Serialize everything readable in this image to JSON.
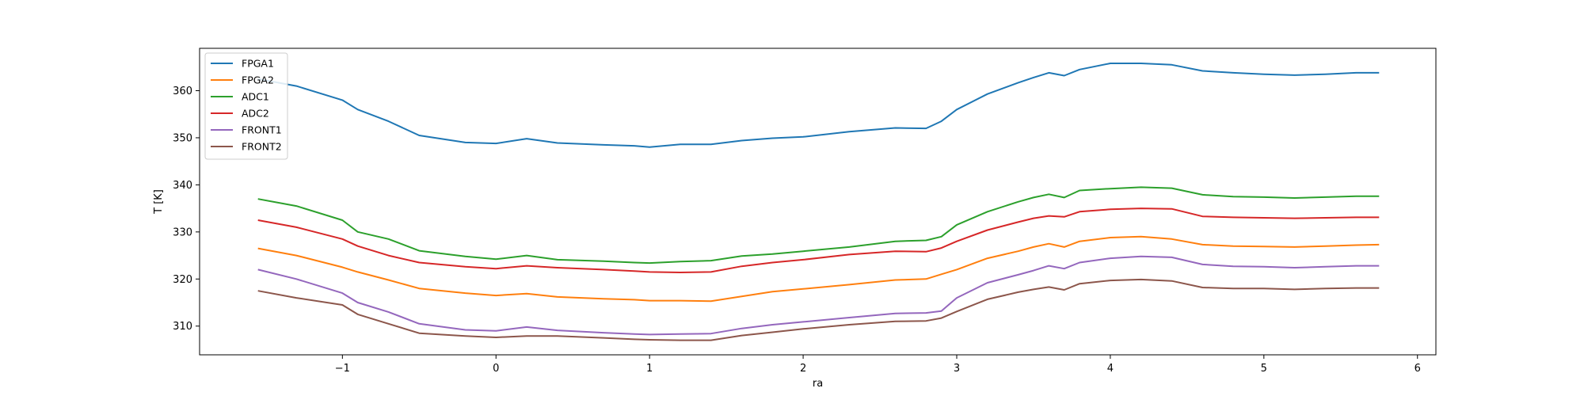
{
  "chart_data": {
    "type": "line",
    "title": "",
    "xlabel": "ra",
    "ylabel": "T [K]",
    "xlim": [
      -1.93,
      6.12
    ],
    "ylim": [
      303.9,
      369.0
    ],
    "xticks": [
      -1,
      0,
      1,
      2,
      3,
      4,
      5,
      6
    ],
    "xtick_labels": [
      "−1",
      "0",
      "1",
      "2",
      "3",
      "4",
      "5",
      "6"
    ],
    "yticks": [
      310,
      320,
      330,
      340,
      350,
      360
    ],
    "ytick_labels": [
      "310",
      "320",
      "330",
      "340",
      "350",
      "360"
    ],
    "grid": false,
    "legend_position": "top-left",
    "x": [
      -1.55,
      -1.3,
      -1.0,
      -0.9,
      -0.7,
      -0.5,
      -0.2,
      0.0,
      0.2,
      0.4,
      0.7,
      0.9,
      1.0,
      1.2,
      1.4,
      1.6,
      1.8,
      2.0,
      2.3,
      2.6,
      2.8,
      2.9,
      3.0,
      3.2,
      3.4,
      3.5,
      3.6,
      3.7,
      3.8,
      4.0,
      4.2,
      4.4,
      4.6,
      4.8,
      5.0,
      5.2,
      5.4,
      5.6,
      5.75
    ],
    "series": [
      {
        "name": "FPGA1",
        "color": "#1f77b4",
        "values": [
          362.5,
          361.0,
          358.0,
          356.0,
          353.5,
          350.5,
          349.0,
          348.8,
          349.8,
          348.9,
          348.5,
          348.3,
          348.0,
          348.6,
          348.6,
          349.4,
          349.9,
          350.2,
          351.3,
          352.1,
          352.0,
          353.5,
          356.0,
          359.3,
          361.7,
          362.8,
          363.8,
          363.2,
          364.5,
          365.8,
          365.8,
          365.5,
          364.2,
          363.8,
          363.5,
          363.3,
          363.5,
          363.8,
          363.8
        ]
      },
      {
        "name": "FPGA2",
        "color": "#ff7f0e",
        "values": [
          326.5,
          325.0,
          322.5,
          321.5,
          319.8,
          318.0,
          317.0,
          316.5,
          316.9,
          316.2,
          315.8,
          315.6,
          315.4,
          315.4,
          315.3,
          316.3,
          317.3,
          317.9,
          318.8,
          319.8,
          320.0,
          321.0,
          322.0,
          324.4,
          325.9,
          326.8,
          327.5,
          326.8,
          328.0,
          328.8,
          329.0,
          328.5,
          327.3,
          327.0,
          326.9,
          326.8,
          327.0,
          327.2,
          327.3
        ]
      },
      {
        "name": "ADC1",
        "color": "#2ca02c",
        "values": [
          337.0,
          335.5,
          332.5,
          330.0,
          328.5,
          326.0,
          324.8,
          324.2,
          325.0,
          324.1,
          323.8,
          323.5,
          323.4,
          323.7,
          323.9,
          324.9,
          325.3,
          325.9,
          326.8,
          328.0,
          328.2,
          329.0,
          331.5,
          334.3,
          336.4,
          337.3,
          338.0,
          337.3,
          338.8,
          339.2,
          339.5,
          339.3,
          337.9,
          337.5,
          337.4,
          337.2,
          337.4,
          337.6,
          337.6
        ]
      },
      {
        "name": "ADC2",
        "color": "#d62728",
        "values": [
          332.5,
          331.0,
          328.5,
          327.0,
          325.0,
          323.5,
          322.6,
          322.2,
          322.8,
          322.4,
          322.0,
          321.7,
          321.5,
          321.4,
          321.5,
          322.7,
          323.5,
          324.1,
          325.2,
          325.9,
          325.8,
          326.6,
          328.0,
          330.4,
          332.1,
          332.9,
          333.4,
          333.2,
          334.3,
          334.8,
          335.0,
          334.9,
          333.3,
          333.1,
          333.0,
          332.9,
          333.0,
          333.1,
          333.1
        ]
      },
      {
        "name": "FRONT1",
        "color": "#9467bd",
        "values": [
          322.0,
          320.0,
          317.0,
          315.0,
          313.0,
          310.5,
          309.2,
          309.0,
          309.8,
          309.1,
          308.6,
          308.3,
          308.2,
          308.3,
          308.4,
          309.5,
          310.3,
          310.9,
          311.8,
          312.7,
          312.8,
          313.2,
          316.0,
          319.2,
          320.9,
          321.8,
          322.8,
          322.2,
          323.5,
          324.4,
          324.8,
          324.6,
          323.1,
          322.7,
          322.6,
          322.4,
          322.6,
          322.8,
          322.8
        ]
      },
      {
        "name": "FRONT2",
        "color": "#8c564b",
        "values": [
          317.5,
          316.0,
          314.5,
          312.5,
          310.5,
          308.5,
          307.9,
          307.6,
          307.9,
          307.9,
          307.5,
          307.2,
          307.1,
          307.0,
          307.0,
          308.0,
          308.7,
          309.4,
          310.3,
          311.0,
          311.1,
          311.7,
          313.1,
          315.7,
          317.2,
          317.8,
          318.3,
          317.7,
          319.0,
          319.7,
          319.9,
          319.6,
          318.2,
          318.0,
          318.0,
          317.8,
          318.0,
          318.1,
          318.1
        ]
      }
    ]
  }
}
